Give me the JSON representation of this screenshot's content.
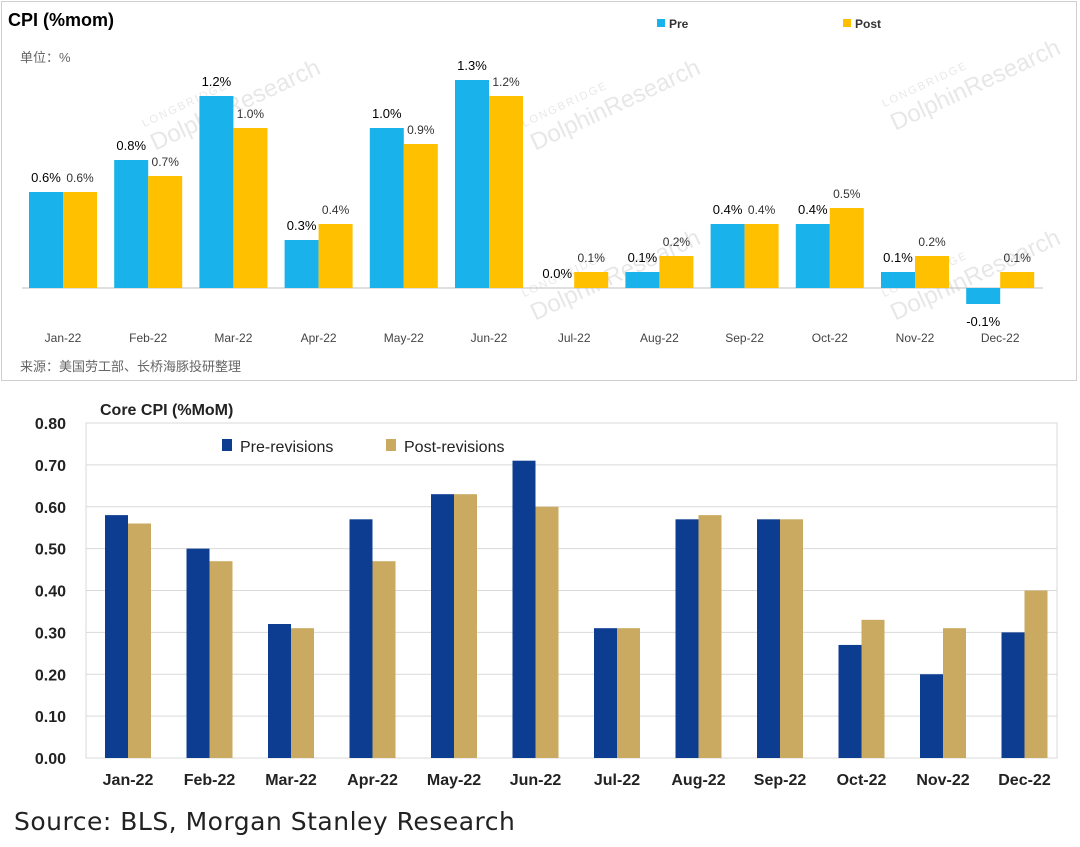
{
  "chart_data": [
    {
      "type": "bar",
      "title": "CPI (%mom)",
      "unit_note": "单位：%",
      "source": "来源：美国劳工部、长桥海豚投研整理",
      "watermark": "LONGBRIDGE DolphinResearch",
      "categories": [
        "Jan-22",
        "Feb-22",
        "Mar-22",
        "Apr-22",
        "May-22",
        "Jun-22",
        "Jul-22",
        "Aug-22",
        "Sep-22",
        "Oct-22",
        "Nov-22",
        "Dec-22"
      ],
      "series": [
        {
          "name": "Pre",
          "color": "#1ab2ea",
          "values": [
            0.6,
            0.8,
            1.2,
            0.3,
            1.0,
            1.3,
            0.0,
            0.1,
            0.4,
            0.4,
            0.1,
            -0.1
          ],
          "labels": [
            "0.6%",
            "0.8%",
            "1.2%",
            "0.3%",
            "1.0%",
            "1.3%",
            "0.0%",
            "0.1%",
            "0.4%",
            "0.4%",
            "0.1%",
            "-0.1%"
          ]
        },
        {
          "name": "Post",
          "color": "#ffc000",
          "values": [
            0.6,
            0.7,
            1.0,
            0.4,
            0.9,
            1.2,
            0.1,
            0.2,
            0.4,
            0.5,
            0.2,
            0.1
          ],
          "labels": [
            "0.6%",
            "0.7%",
            "1.0%",
            "0.4%",
            "0.9%",
            "1.2%",
            "0.1%",
            "0.2%",
            "0.4%",
            "0.5%",
            "0.2%",
            "0.1%"
          ]
        }
      ],
      "legend_position": "top-right",
      "grid": false
    },
    {
      "type": "bar",
      "title": "Core CPI (%MoM)",
      "source": "Source: BLS, Morgan Stanley Research",
      "categories": [
        "Jan-22",
        "Feb-22",
        "Mar-22",
        "Apr-22",
        "May-22",
        "Jun-22",
        "Jul-22",
        "Aug-22",
        "Sep-22",
        "Oct-22",
        "Nov-22",
        "Dec-22"
      ],
      "series": [
        {
          "name": "Pre-revisions",
          "color": "#0d3d91",
          "values": [
            0.58,
            0.5,
            0.32,
            0.57,
            0.63,
            0.71,
            0.31,
            0.57,
            0.57,
            0.27,
            0.2,
            0.3
          ]
        },
        {
          "name": "Post-revisions",
          "color": "#c9aa60",
          "values": [
            0.56,
            0.47,
            0.31,
            0.47,
            0.63,
            0.6,
            0.31,
            0.58,
            0.57,
            0.33,
            0.31,
            0.4
          ]
        }
      ],
      "ylim": [
        0,
        0.8
      ],
      "yticks": [
        "0.00",
        "0.10",
        "0.20",
        "0.30",
        "0.40",
        "0.50",
        "0.60",
        "0.70",
        "0.80"
      ],
      "legend_position": "top-left",
      "grid": true
    }
  ]
}
